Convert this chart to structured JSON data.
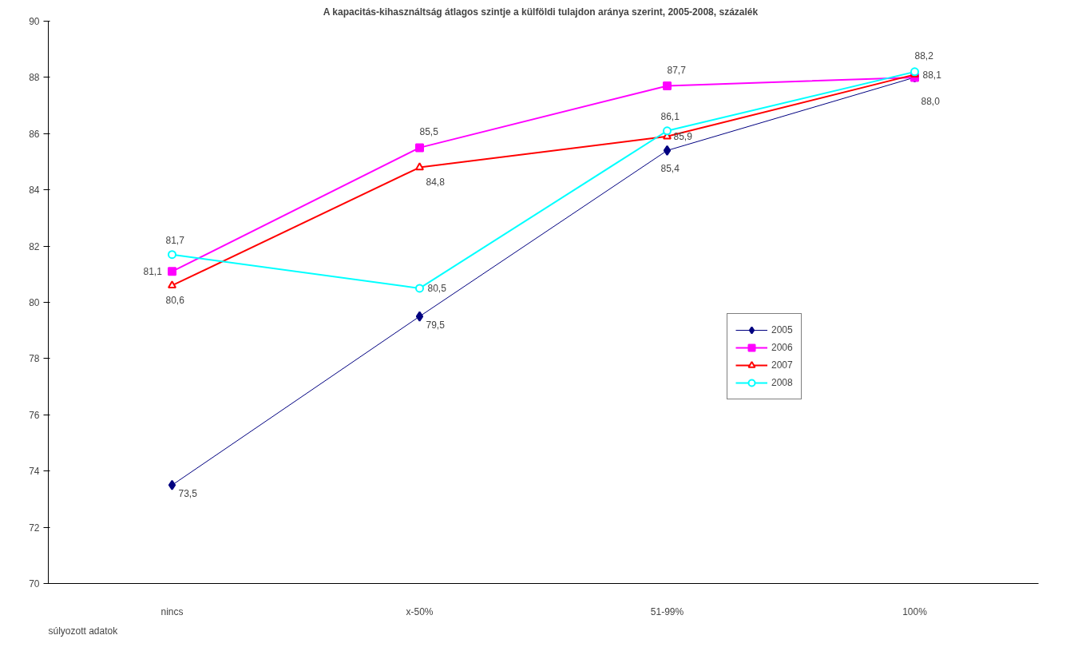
{
  "chart_data": {
    "type": "line",
    "title": "A kapacitás-kihasználtság  átlagos szintje a külföldi tulajdon aránya szerint, 2005-2008,  százalék",
    "categories": [
      "nincs",
      "x-50%",
      "51-99%",
      "100%"
    ],
    "series": [
      {
        "name": "2005",
        "color": "#000080",
        "marker": "diamond",
        "values": [
          73.5,
          79.5,
          85.4,
          88.0
        ],
        "value_labels": [
          "73,5",
          "79,5",
          "85,4",
          "88,0"
        ]
      },
      {
        "name": "2006",
        "color": "#ff00ff",
        "marker": "square",
        "values": [
          81.1,
          85.5,
          87.7,
          88.0
        ],
        "value_labels": [
          "81,1",
          "85,5",
          "87,7",
          null
        ]
      },
      {
        "name": "2007",
        "color": "#ff0000",
        "marker": "triangle",
        "values": [
          80.6,
          84.8,
          85.9,
          88.1
        ],
        "value_labels": [
          "80,6",
          "84,8",
          "85,9",
          "88,1"
        ]
      },
      {
        "name": "2008",
        "color": "#00ffff",
        "marker": "circle",
        "values": [
          81.7,
          80.5,
          86.1,
          88.2
        ],
        "value_labels": [
          "81,7",
          "80,5",
          "86,1",
          "88,2"
        ]
      }
    ],
    "ylim": [
      70,
      90
    ],
    "yticks": [
      70,
      72,
      74,
      76,
      78,
      80,
      82,
      84,
      86,
      88,
      90
    ],
    "grid": false,
    "legend": "right",
    "line_style": "solid",
    "annotations": [
      "súlyozott adatok"
    ]
  }
}
